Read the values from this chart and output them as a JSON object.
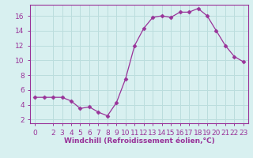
{
  "x": [
    0,
    1,
    2,
    3,
    4,
    5,
    6,
    7,
    8,
    9,
    10,
    11,
    12,
    13,
    14,
    15,
    16,
    17,
    18,
    19,
    20,
    21,
    22,
    23
  ],
  "y": [
    5.0,
    5.0,
    5.0,
    5.0,
    4.5,
    3.5,
    3.7,
    3.0,
    2.5,
    4.3,
    7.5,
    12.0,
    14.3,
    15.8,
    16.0,
    15.8,
    16.5,
    16.5,
    17.0,
    16.0,
    14.0,
    12.0,
    10.5,
    9.8
  ],
  "line_color": "#993399",
  "marker": "D",
  "marker_size": 2.5,
  "bg_color": "#d8f0f0",
  "grid_color": "#bbdddd",
  "xlabel": "Windchill (Refroidissement éolien,°C)",
  "xlabel_fontsize": 6.5,
  "yticks": [
    2,
    4,
    6,
    8,
    10,
    12,
    14,
    16
  ],
  "xticks": [
    0,
    2,
    3,
    4,
    5,
    6,
    7,
    8,
    9,
    10,
    11,
    12,
    13,
    14,
    15,
    16,
    17,
    18,
    19,
    20,
    21,
    22,
    23
  ],
  "ylim": [
    1.5,
    17.5
  ],
  "xlim": [
    -0.5,
    23.5
  ],
  "tick_fontsize": 6.5,
  "spine_color": "#993399"
}
